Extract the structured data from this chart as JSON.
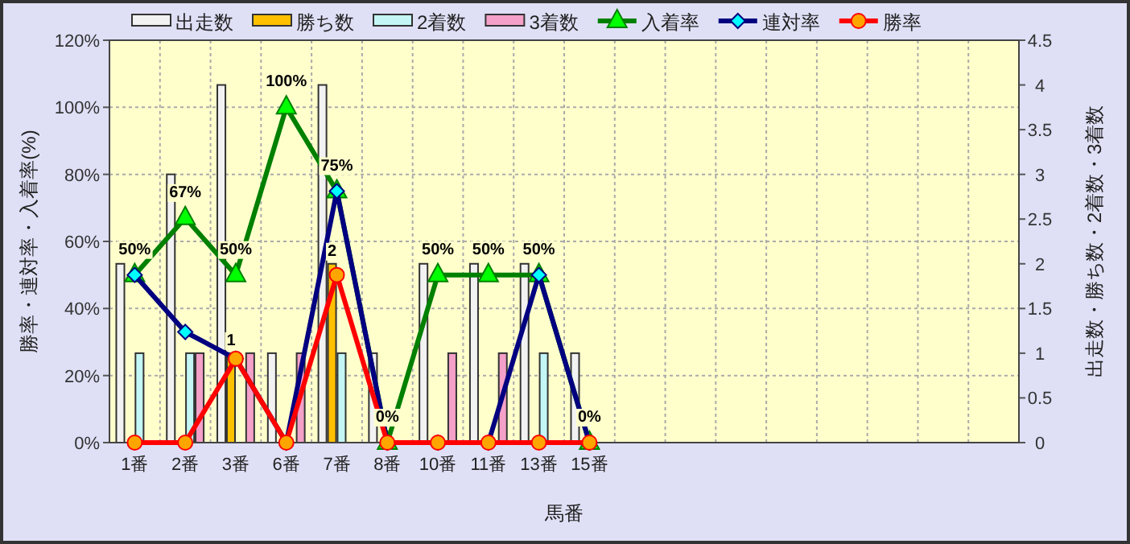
{
  "chart_data": {
    "type": "bar",
    "xlabel": "馬番",
    "ylabel": "勝率・連対率・入着率(%)",
    "y2label": "出走数・勝ち数・2着数・3着数",
    "categories": [
      "1番",
      "2番",
      "3番",
      "6番",
      "7番",
      "8番",
      "10番",
      "11番",
      "13番",
      "15番",
      null,
      null,
      null,
      null,
      null,
      null,
      null,
      null
    ],
    "ylim": [
      0,
      120
    ],
    "yticks": [
      {
        "value": 0,
        "label": "0%"
      },
      {
        "value": 20,
        "label": "20%"
      },
      {
        "value": 40,
        "label": "40%"
      },
      {
        "value": 60,
        "label": "60%"
      },
      {
        "value": 80,
        "label": "80%"
      },
      {
        "value": 100,
        "label": "100%"
      },
      {
        "value": 120,
        "label": "120%"
      }
    ],
    "y2lim": [
      0,
      4.5
    ],
    "y2ticks": [
      0,
      0.5,
      1,
      1.5,
      2,
      2.5,
      3,
      3.5,
      4,
      4.5
    ],
    "grid": true,
    "legend": "top",
    "series": [
      {
        "name": "出走数",
        "axis": "y2",
        "color": "#f2f2f2",
        "values": [
          2,
          3,
          4,
          1,
          4,
          1,
          2,
          2,
          2,
          1,
          null,
          null,
          null,
          null,
          null,
          null,
          null,
          null
        ]
      },
      {
        "name": "勝ち数",
        "axis": "y2",
        "color": "#ffc000",
        "values": [
          0,
          0,
          1,
          0,
          2,
          0,
          0,
          0,
          0,
          0,
          null,
          null,
          null,
          null,
          null,
          null,
          null,
          null
        ],
        "value_labels": [
          null,
          null,
          "1",
          null,
          "2",
          null,
          null,
          null,
          null,
          null,
          null,
          null,
          null,
          null,
          null,
          null,
          null,
          null
        ]
      },
      {
        "name": "2着数",
        "axis": "y2",
        "color": "#c4f6f6",
        "values": [
          1,
          1,
          0,
          0,
          1,
          0,
          0,
          0,
          1,
          0,
          null,
          null,
          null,
          null,
          null,
          null,
          null,
          null
        ]
      },
      {
        "name": "3着数",
        "axis": "y2",
        "color": "#f4a0c8",
        "values": [
          0,
          1,
          1,
          1,
          0,
          0,
          1,
          1,
          0,
          0,
          null,
          null,
          null,
          null,
          null,
          null,
          null,
          null
        ]
      },
      {
        "name": "入着率",
        "type": "line",
        "axis": "y",
        "color": "#008000",
        "marker": "triangle",
        "values": [
          50,
          67,
          50,
          100,
          75,
          0,
          50,
          50,
          50,
          0,
          null,
          null,
          null,
          null,
          null,
          null,
          null,
          null
        ],
        "value_labels": [
          "50%",
          "67%",
          "50%",
          "100%",
          "75%",
          "0%",
          "50%",
          "50%",
          "50%",
          "0%",
          null,
          null,
          null,
          null,
          null,
          null,
          null,
          null
        ]
      },
      {
        "name": "連対率",
        "type": "line",
        "axis": "y",
        "color": "#000080",
        "marker": "diamond",
        "values": [
          50,
          33,
          25,
          0,
          75,
          0,
          0,
          0,
          50,
          0,
          null,
          null,
          null,
          null,
          null,
          null,
          null,
          null
        ]
      },
      {
        "name": "勝率",
        "type": "line",
        "axis": "y",
        "color": "#ff0000",
        "marker": "circle",
        "values": [
          0,
          0,
          25,
          0,
          50,
          0,
          0,
          0,
          0,
          0,
          null,
          null,
          null,
          null,
          null,
          null,
          null,
          null
        ]
      }
    ]
  }
}
